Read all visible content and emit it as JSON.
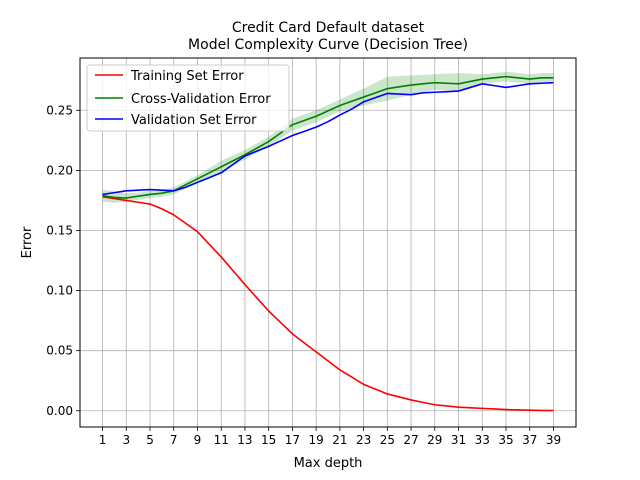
{
  "chart_data": {
    "type": "line",
    "title": "Credit Card Default dataset",
    "subtitle": "Model Complexity Curve (Decision Tree)",
    "xlabel": "Max depth",
    "ylabel": "Error",
    "x": [
      1,
      2,
      3,
      4,
      5,
      6,
      7,
      8,
      9,
      10,
      11,
      12,
      13,
      14,
      15,
      16,
      17,
      18,
      19,
      20,
      21,
      22,
      23,
      24,
      25,
      26,
      27,
      28,
      29,
      30,
      31,
      32,
      33,
      34,
      35,
      36,
      37,
      38,
      39
    ],
    "xticks": [
      1,
      3,
      5,
      7,
      9,
      11,
      13,
      15,
      17,
      19,
      21,
      23,
      25,
      27,
      29,
      31,
      33,
      35,
      37,
      39
    ],
    "xtick_labels": [
      "1",
      "3",
      "5",
      "7",
      "9",
      "11",
      "13",
      "15",
      "17",
      "19",
      "21",
      "23",
      "25",
      "27",
      "29",
      "31",
      "33",
      "35",
      "37",
      "39"
    ],
    "xlim": [
      -0.9,
      40.9
    ],
    "yticks": [
      0.0,
      0.05,
      0.1,
      0.15,
      0.2,
      0.25
    ],
    "ytick_labels": [
      "0.00",
      "0.05",
      "0.10",
      "0.15",
      "0.20",
      "0.25"
    ],
    "ylim": [
      -0.0135,
      0.2935
    ],
    "grid": true,
    "legend_position": "upper-left",
    "series": [
      {
        "name": "Training Set Error",
        "color": "#ff0000",
        "values": [
          0.178,
          0.1765,
          0.175,
          0.1735,
          0.172,
          0.168,
          0.163,
          0.156,
          0.149,
          0.1385,
          0.128,
          0.1165,
          0.105,
          0.094,
          0.083,
          0.0735,
          0.064,
          0.0565,
          0.049,
          0.0415,
          0.034,
          0.028,
          0.022,
          0.018,
          0.014,
          0.0115,
          0.009,
          0.007,
          0.005,
          0.004,
          0.003,
          0.0025,
          0.002,
          0.0015,
          0.001,
          0.0007,
          0.0005,
          0.0003,
          0.0002
        ]
      },
      {
        "name": "Cross-Validation Error",
        "color": "#008000",
        "band_color": "#008000",
        "values": [
          0.179,
          0.1775,
          0.177,
          0.1785,
          0.18,
          0.181,
          0.183,
          0.188,
          0.193,
          0.198,
          0.203,
          0.208,
          0.213,
          0.2185,
          0.224,
          0.231,
          0.238,
          0.2415,
          0.245,
          0.2495,
          0.254,
          0.2575,
          0.261,
          0.2645,
          0.268,
          0.2695,
          0.271,
          0.272,
          0.273,
          0.2725,
          0.272,
          0.274,
          0.276,
          0.277,
          0.278,
          0.277,
          0.276,
          0.277,
          0.277
        ],
        "band_lower": [
          0.174,
          0.173,
          0.174,
          0.1755,
          0.177,
          0.178,
          0.18,
          0.185,
          0.19,
          0.194,
          0.198,
          0.2035,
          0.209,
          0.2145,
          0.22,
          0.2265,
          0.233,
          0.2365,
          0.24,
          0.2445,
          0.249,
          0.2515,
          0.254,
          0.256,
          0.258,
          0.2605,
          0.263,
          0.265,
          0.267,
          0.2665,
          0.266,
          0.269,
          0.272,
          0.273,
          0.274,
          0.273,
          0.272,
          0.273,
          0.274
        ],
        "band_upper": [
          0.184,
          0.1825,
          0.181,
          0.1815,
          0.183,
          0.184,
          0.186,
          0.191,
          0.196,
          0.202,
          0.208,
          0.2125,
          0.217,
          0.2225,
          0.228,
          0.2355,
          0.243,
          0.2465,
          0.25,
          0.2545,
          0.259,
          0.2635,
          0.268,
          0.273,
          0.278,
          0.2785,
          0.279,
          0.2795,
          0.28,
          0.2805,
          0.281,
          0.2805,
          0.28,
          0.281,
          0.282,
          0.281,
          0.28,
          0.281,
          0.281
        ]
      },
      {
        "name": "Validation Set Error",
        "color": "#0000ff",
        "values": [
          0.18,
          0.1815,
          0.183,
          0.1835,
          0.184,
          0.1835,
          0.183,
          0.186,
          0.19,
          0.194,
          0.198,
          0.205,
          0.212,
          0.216,
          0.22,
          0.2245,
          0.229,
          0.2325,
          0.236,
          0.2405,
          0.246,
          0.251,
          0.257,
          0.2605,
          0.264,
          0.2635,
          0.263,
          0.2645,
          0.265,
          0.2655,
          0.266,
          0.269,
          0.272,
          0.2705,
          0.269,
          0.2705,
          0.272,
          0.2725,
          0.273
        ]
      }
    ]
  }
}
